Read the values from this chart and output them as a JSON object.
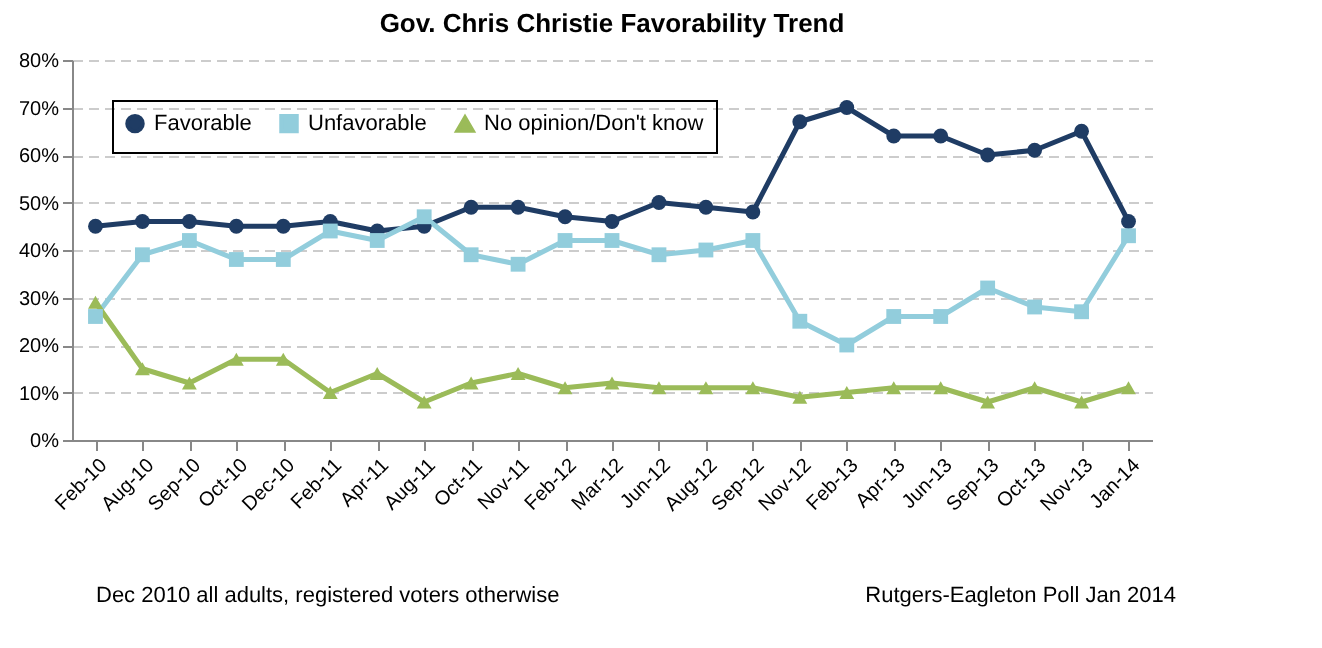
{
  "chart_data": {
    "type": "line",
    "title": "Gov. Chris Christie Favorability Trend",
    "categories": [
      "Feb-10",
      "Aug-10",
      "Sep-10",
      "Oct-10",
      "Dec-10",
      "Feb-11",
      "Apr-11",
      "Aug-11",
      "Oct-11",
      "Nov-11",
      "Feb-12",
      "Mar-12",
      "Jun-12",
      "Aug-12",
      "Sep-12",
      "Nov-12",
      "Feb-13",
      "Apr-13",
      "Jun-13",
      "Sep-13",
      "Oct-13",
      "Nov-13",
      "Jan-14"
    ],
    "series": [
      {
        "name": "Favorable",
        "color": "#1f3c64",
        "marker": "circle",
        "values": [
          45,
          46,
          46,
          45,
          45,
          46,
          44,
          45,
          49,
          49,
          47,
          46,
          50,
          49,
          48,
          67,
          70,
          64,
          64,
          60,
          61,
          65,
          46
        ]
      },
      {
        "name": "Unfavorable",
        "color": "#92cddc",
        "marker": "square",
        "values": [
          26,
          39,
          42,
          38,
          38,
          44,
          42,
          47,
          39,
          37,
          42,
          42,
          39,
          40,
          42,
          25,
          20,
          26,
          26,
          32,
          28,
          27,
          43
        ]
      },
      {
        "name": "No opinion/Don't know",
        "color": "#9bbb59",
        "marker": "triangle",
        "values": [
          29,
          15,
          12,
          17,
          17,
          10,
          14,
          8,
          12,
          14,
          11,
          12,
          11,
          11,
          11,
          9,
          10,
          11,
          11,
          8,
          11,
          8,
          11
        ]
      }
    ],
    "ylim": [
      0,
      80
    ],
    "yticks": [
      {
        "value": 0,
        "label": "0%"
      },
      {
        "value": 10,
        "label": "10%"
      },
      {
        "value": 20,
        "label": "20%"
      },
      {
        "value": 30,
        "label": "30%"
      },
      {
        "value": 40,
        "label": "40%"
      },
      {
        "value": 50,
        "label": "50%"
      },
      {
        "value": 60,
        "label": "60%"
      },
      {
        "value": 70,
        "label": "70%"
      },
      {
        "value": 80,
        "label": "80%"
      }
    ],
    "grid": "y",
    "legend": "top left",
    "line_style": "solid",
    "annotations": [
      "Dec 2010 all adults, registered voters otherwise",
      "Rutgers-Eagleton Poll Jan 2014"
    ]
  }
}
